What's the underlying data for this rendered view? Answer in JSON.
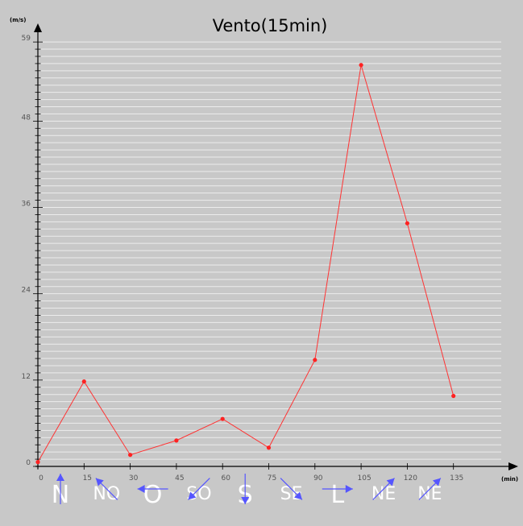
{
  "chart_data": {
    "type": "line",
    "title": "Vento(15min)",
    "y_unit": "(m/s)",
    "x_unit": "(min)",
    "x": [
      0,
      15,
      30,
      45,
      60,
      75,
      90,
      105,
      120,
      135
    ],
    "x_ticks": [
      "0",
      "15",
      "30",
      "45",
      "60",
      "75",
      "90",
      "105",
      "120",
      "135"
    ],
    "y_ticks": [
      "0",
      "12",
      "24",
      "36",
      "48",
      "59"
    ],
    "ylim": [
      0,
      59
    ],
    "xlim": [
      0,
      155
    ],
    "series": [
      {
        "values": [
          0.6,
          11.8,
          1.6,
          3.6,
          6.6,
          2.6,
          14.8,
          55.8,
          33.8,
          9.8
        ]
      }
    ],
    "directions": [
      {
        "label": "N",
        "arrow": "up"
      },
      {
        "label": "NO",
        "arrow": "up-left"
      },
      {
        "label": "O",
        "arrow": "left"
      },
      {
        "label": "SO",
        "arrow": "down-left"
      },
      {
        "label": "S",
        "arrow": "down"
      },
      {
        "label": "SE",
        "arrow": "down-right"
      },
      {
        "label": "L",
        "arrow": "right"
      },
      {
        "label": "NE",
        "arrow": "up-right"
      },
      {
        "label": "NE",
        "arrow": "up-right"
      }
    ],
    "grid": true,
    "colors": {
      "line": "#ff3333",
      "point": "#ff2222",
      "arrow": "#5555ff",
      "grid": "#ececec",
      "background": "#c8c8c8"
    }
  }
}
